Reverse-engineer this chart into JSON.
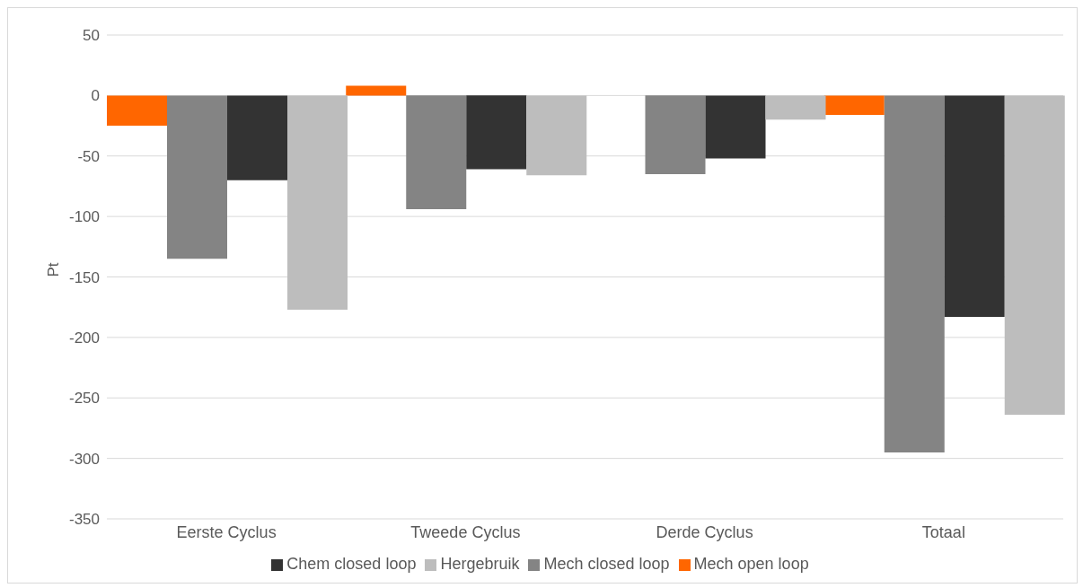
{
  "chart_data": {
    "type": "bar",
    "ylabel": "Pt",
    "categories": [
      "Eerste Cyclus",
      "Tweede Cyclus",
      "Derde Cyclus",
      "Totaal"
    ],
    "series": [
      {
        "name": "Mech open loop",
        "color": "#ff6600",
        "values": [
          -25,
          8,
          0,
          -16
        ]
      },
      {
        "name": "Mech closed loop",
        "color": "#848484",
        "values": [
          -135,
          -94,
          -65,
          -295
        ]
      },
      {
        "name": "Chem closed loop",
        "color": "#333333",
        "values": [
          -70,
          -61,
          -52,
          -183
        ]
      },
      {
        "name": "Hergebruik",
        "color": "#bdbdbd",
        "values": [
          -177,
          -66,
          -20,
          -264
        ]
      }
    ],
    "ylim": [
      -350,
      50
    ],
    "yticks": [
      -350,
      -300,
      -250,
      -200,
      -150,
      -100,
      -50,
      0,
      50
    ],
    "grid": "y",
    "legend": "bottom"
  }
}
